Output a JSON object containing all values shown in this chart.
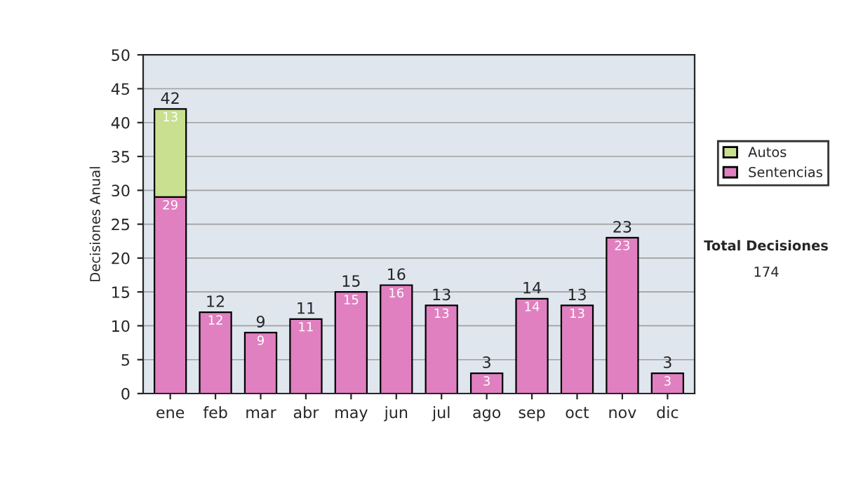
{
  "chart_data": {
    "type": "bar",
    "ylabel": "Decisiones Anual",
    "stacked": true,
    "categories": [
      "ene",
      "feb",
      "mar",
      "abr",
      "may",
      "jun",
      "jul",
      "ago",
      "sep",
      "oct",
      "nov",
      "dic"
    ],
    "series": [
      {
        "name": "Sentencias",
        "color": "#e080c0",
        "values": [
          29,
          12,
          9,
          11,
          15,
          16,
          13,
          3,
          14,
          13,
          23,
          3
        ]
      },
      {
        "name": "Autos",
        "color": "#c8e090",
        "values": [
          13,
          null,
          null,
          null,
          null,
          null,
          null,
          null,
          null,
          null,
          null,
          null
        ]
      }
    ],
    "totals": [
      "42",
      "12",
      "9",
      "11",
      "15",
      "16",
      "13",
      "3",
      "14",
      "13",
      "23",
      "3"
    ],
    "data_labels": true,
    "ylim": [
      0,
      50
    ],
    "yticks": [
      0,
      5,
      10,
      15,
      20,
      25,
      30,
      35,
      40,
      45,
      50
    ],
    "grid": "y",
    "legend": "right",
    "annotations": [
      "Total Decisiones",
      "174"
    ]
  }
}
